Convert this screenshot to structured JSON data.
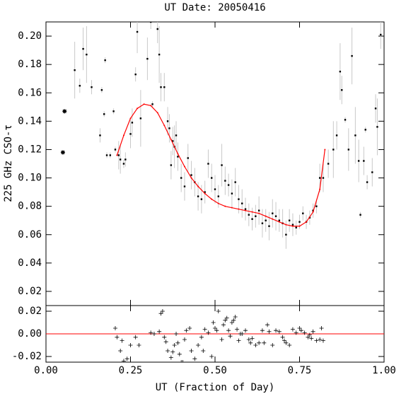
{
  "chart_data": [
    {
      "type": "scatter",
      "title": "UT Date: 20050416",
      "y_label": "225 GHz CSO-τ",
      "xlim": [
        0,
        1
      ],
      "ylim": [
        0.01,
        0.21
      ],
      "yticks": [
        0.02,
        0.04,
        0.06,
        0.08,
        {
          "value": 0.1,
          "label": "0.10"
        },
        0.12,
        0.14,
        0.16,
        0.18,
        {
          "value": 0.2,
          "label": "0.20"
        }
      ],
      "series": [
        {
          "color": "#000000",
          "error_color": "#c8c8c8",
          "marker": "square",
          "x": [
            0.085,
            0.1,
            0.11,
            0.12,
            0.135,
            0.16,
            0.165,
            0.172,
            0.175,
            0.18,
            0.19,
            0.2,
            0.205,
            0.215,
            0.22,
            0.23,
            0.235,
            0.25,
            0.255,
            0.265,
            0.27,
            0.28,
            0.3,
            0.31,
            0.315,
            0.33,
            0.335,
            0.34,
            0.35,
            0.36,
            0.365,
            0.37,
            0.375,
            0.38,
            0.385,
            0.39,
            0.4,
            0.41,
            0.42,
            0.43,
            0.44,
            0.45,
            0.46,
            0.47,
            0.48,
            0.49,
            0.5,
            0.51,
            0.52,
            0.53,
            0.54,
            0.55,
            0.56,
            0.57,
            0.58,
            0.59,
            0.6,
            0.61,
            0.62,
            0.63,
            0.64,
            0.65,
            0.66,
            0.67,
            0.68,
            0.69,
            0.7,
            0.71,
            0.72,
            0.73,
            0.74,
            0.75,
            0.76,
            0.77,
            0.78,
            0.79,
            0.8,
            0.81,
            0.82,
            0.835,
            0.85,
            0.86,
            0.87,
            0.875,
            0.885,
            0.895,
            0.905,
            0.915,
            0.925,
            0.93,
            0.94,
            0.945,
            0.95,
            0.965,
            0.975,
            0.98,
            0.99
          ],
          "values": [
            0.176,
            0.165,
            0.191,
            0.187,
            0.164,
            0.13,
            0.162,
            0.145,
            0.183,
            0.116,
            0.116,
            0.147,
            0.12,
            0.116,
            0.113,
            0.11,
            0.113,
            0.131,
            0.139,
            0.173,
            0.203,
            0.142,
            0.184,
            0.21,
            0.152,
            0.205,
            0.187,
            0.164,
            0.164,
            0.14,
            0.135,
            0.109,
            0.126,
            0.122,
            0.13,
            0.115,
            0.1,
            0.094,
            0.114,
            0.102,
            0.097,
            0.087,
            0.085,
            0.09,
            0.11,
            0.1,
            0.092,
            0.087,
            0.109,
            0.098,
            0.095,
            0.089,
            0.097,
            0.085,
            0.082,
            0.078,
            0.074,
            0.071,
            0.073,
            0.077,
            0.068,
            0.07,
            0.066,
            0.075,
            0.073,
            0.07,
            0.068,
            0.06,
            0.07,
            0.067,
            0.065,
            0.069,
            0.075,
            0.069,
            0.072,
            0.077,
            0.08,
            0.1,
            0.1,
            0.11,
            0.12,
            0.13,
            0.175,
            0.162,
            0.141,
            0.12,
            0.186,
            0.13,
            0.112,
            0.074,
            0.112,
            0.134,
            0.097,
            0.104,
            0.149,
            0.136,
            0.201
          ],
          "errors": [
            0.02,
            0.005,
            0.015,
            0.02,
            0.005,
            0.005,
            0.002,
            0.002,
            0.002,
            0.002,
            0.002,
            0.002,
            0.002,
            0.01,
            0.01,
            0.003,
            0.005,
            0.01,
            0.01,
            0.005,
            0.015,
            0.02,
            0.015,
            0.005,
            0.002,
            0.01,
            0.02,
            0.01,
            0.01,
            0.01,
            0.01,
            0.01,
            0.01,
            0.015,
            0.01,
            0.01,
            0.01,
            0.01,
            0.01,
            0.01,
            0.01,
            0.01,
            0.01,
            0.008,
            0.01,
            0.01,
            0.01,
            0.008,
            0.015,
            0.01,
            0.008,
            0.01,
            0.01,
            0.01,
            0.01,
            0.008,
            0.008,
            0.008,
            0.008,
            0.01,
            0.01,
            0.008,
            0.01,
            0.01,
            0.01,
            0.008,
            0.01,
            0.01,
            0.008,
            0.008,
            0.005,
            0.005,
            0.005,
            0.005,
            0.005,
            0.005,
            0.005,
            0.01,
            0.01,
            0.01,
            0.02,
            0.01,
            0.02,
            0.01,
            0.002,
            0.015,
            0.02,
            0.02,
            0.015,
            0.002,
            0.01,
            0.002,
            0.005,
            0.01,
            0.01,
            0.02,
            0.01
          ]
        },
        {
          "color": "#000000",
          "marker": "star",
          "x": [
            0.05,
            0.055
          ],
          "values": [
            0.118,
            0.147
          ]
        },
        {
          "color": "#ff0000",
          "marker": "line",
          "x": [
            0.21,
            0.23,
            0.25,
            0.27,
            0.29,
            0.31,
            0.33,
            0.35,
            0.37,
            0.39,
            0.41,
            0.43,
            0.45,
            0.47,
            0.49,
            0.51,
            0.53,
            0.55,
            0.57,
            0.59,
            0.61,
            0.63,
            0.65,
            0.67,
            0.69,
            0.71,
            0.73,
            0.75,
            0.77,
            0.79,
            0.81,
            0.825
          ],
          "values": [
            0.116,
            0.13,
            0.142,
            0.149,
            0.152,
            0.151,
            0.146,
            0.137,
            0.127,
            0.117,
            0.108,
            0.1,
            0.094,
            0.089,
            0.085,
            0.082,
            0.08,
            0.079,
            0.078,
            0.077,
            0.076,
            0.075,
            0.073,
            0.071,
            0.069,
            0.067,
            0.066,
            0.066,
            0.069,
            0.076,
            0.092,
            0.12
          ]
        }
      ]
    },
    {
      "type": "scatter",
      "x_label": "UT (Fraction of Day)",
      "xlim": [
        0,
        1
      ],
      "ylim": [
        -0.025,
        0.025
      ],
      "xticks": [
        {
          "value": 0,
          "label": "0.00"
        },
        0.25,
        {
          "value": 0.5,
          "label": "0.50"
        },
        0.75,
        {
          "value": 1,
          "label": "1.00"
        }
      ],
      "yticks": [
        {
          "value": -0.02,
          "label": "-0.02"
        },
        {
          "value": 0,
          "label": "0.00"
        },
        0.02
      ],
      "hline": 0,
      "hline_color": "#ff0000",
      "series": [
        {
          "color": "#000000",
          "marker": "plus",
          "x": [
            0.205,
            0.21,
            0.22,
            0.225,
            0.23,
            0.24,
            0.25,
            0.265,
            0.275,
            0.31,
            0.32,
            0.335,
            0.34,
            0.345,
            0.35,
            0.355,
            0.36,
            0.37,
            0.375,
            0.38,
            0.385,
            0.39,
            0.395,
            0.4,
            0.405,
            0.41,
            0.415,
            0.425,
            0.43,
            0.44,
            0.45,
            0.46,
            0.465,
            0.47,
            0.48,
            0.49,
            0.495,
            0.5,
            0.505,
            0.51,
            0.52,
            0.525,
            0.53,
            0.535,
            0.54,
            0.545,
            0.55,
            0.555,
            0.56,
            0.565,
            0.57,
            0.575,
            0.58,
            0.59,
            0.6,
            0.605,
            0.61,
            0.62,
            0.63,
            0.64,
            0.645,
            0.655,
            0.66,
            0.67,
            0.68,
            0.69,
            0.7,
            0.705,
            0.71,
            0.72,
            0.73,
            0.74,
            0.75,
            0.755,
            0.765,
            0.775,
            0.78,
            0.785,
            0.79,
            0.8,
            0.81,
            0.815,
            0.82
          ],
          "values": [
            0.005,
            -0.003,
            -0.015,
            -0.006,
            -0.024,
            -0.022,
            -0.01,
            -0.003,
            -0.01,
            0.001,
            0,
            0.002,
            0.018,
            0.02,
            -0.003,
            -0.007,
            -0.015,
            -0.021,
            -0.016,
            -0.01,
            0,
            -0.008,
            -0.018,
            -0.025,
            -0.025,
            -0.005,
            0.003,
            0.005,
            -0.015,
            -0.022,
            -0.01,
            -0.003,
            -0.015,
            0.004,
            0.001,
            -0.02,
            0.01,
            0.005,
            0.003,
            0.02,
            -0.005,
            0.008,
            0.012,
            0.014,
            0.003,
            -0.002,
            0.01,
            0.012,
            0.015,
            0.004,
            -0.006,
            0,
            0,
            0.003,
            -0.005,
            -0.008,
            -0.004,
            -0.01,
            -0.008,
            0.003,
            -0.008,
            0.008,
            0.002,
            -0.01,
            0.003,
            0.002,
            -0.003,
            -0.006,
            -0.008,
            -0.01,
            0.004,
            0.001,
            0.005,
            0.003,
            0.001,
            -0.003,
            -0.001,
            -0.004,
            0.002,
            -0.006,
            -0.005,
            0.005,
            -0.006
          ]
        }
      ]
    }
  ]
}
